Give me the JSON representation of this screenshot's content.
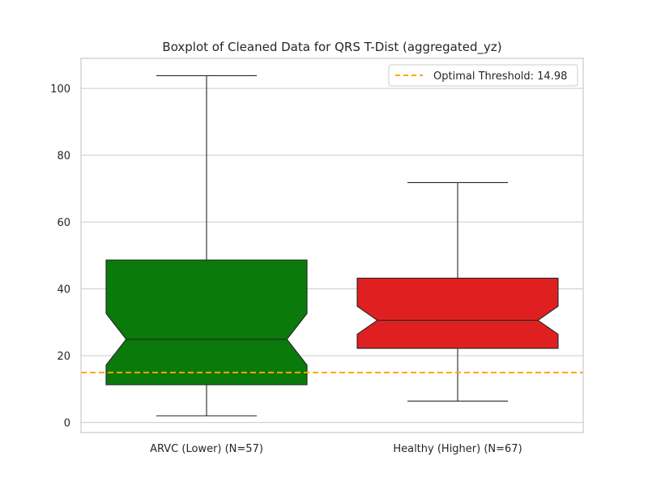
{
  "chart_data": {
    "type": "boxplot",
    "title": "Boxplot of Cleaned Data for QRS T-Dist (aggregated_yz)",
    "xlabel": "",
    "ylabel": "",
    "ylim": [
      -3,
      109
    ],
    "yticks": [
      0,
      20,
      40,
      60,
      80,
      100
    ],
    "grid": true,
    "notched": true,
    "legend": {
      "position": "top-right",
      "entries": [
        "Optimal Threshold: 14.98"
      ]
    },
    "threshold": {
      "value": 14.98,
      "label": "Optimal Threshold: 14.98",
      "color": "#FFA500",
      "style": "dashed"
    },
    "categories": [
      "ARVC (Lower) (N=57)",
      "Healthy (Higher) (N=67)"
    ],
    "boxes": [
      {
        "name": "ARVC (Lower) (N=57)",
        "whisker_low": 2,
        "q1": 11.3,
        "notch_low": 17.2,
        "median": 24.9,
        "notch_high": 32.6,
        "q3": 48.6,
        "whisker_high": 103.8,
        "color": "#0A7A0A"
      },
      {
        "name": "Healthy (Higher) (N=67)",
        "whisker_low": 6.4,
        "q1": 22.2,
        "notch_low": 26.4,
        "median": 30.6,
        "notch_high": 34.8,
        "q3": 43.2,
        "whisker_high": 71.8,
        "color": "#E02020"
      }
    ]
  }
}
